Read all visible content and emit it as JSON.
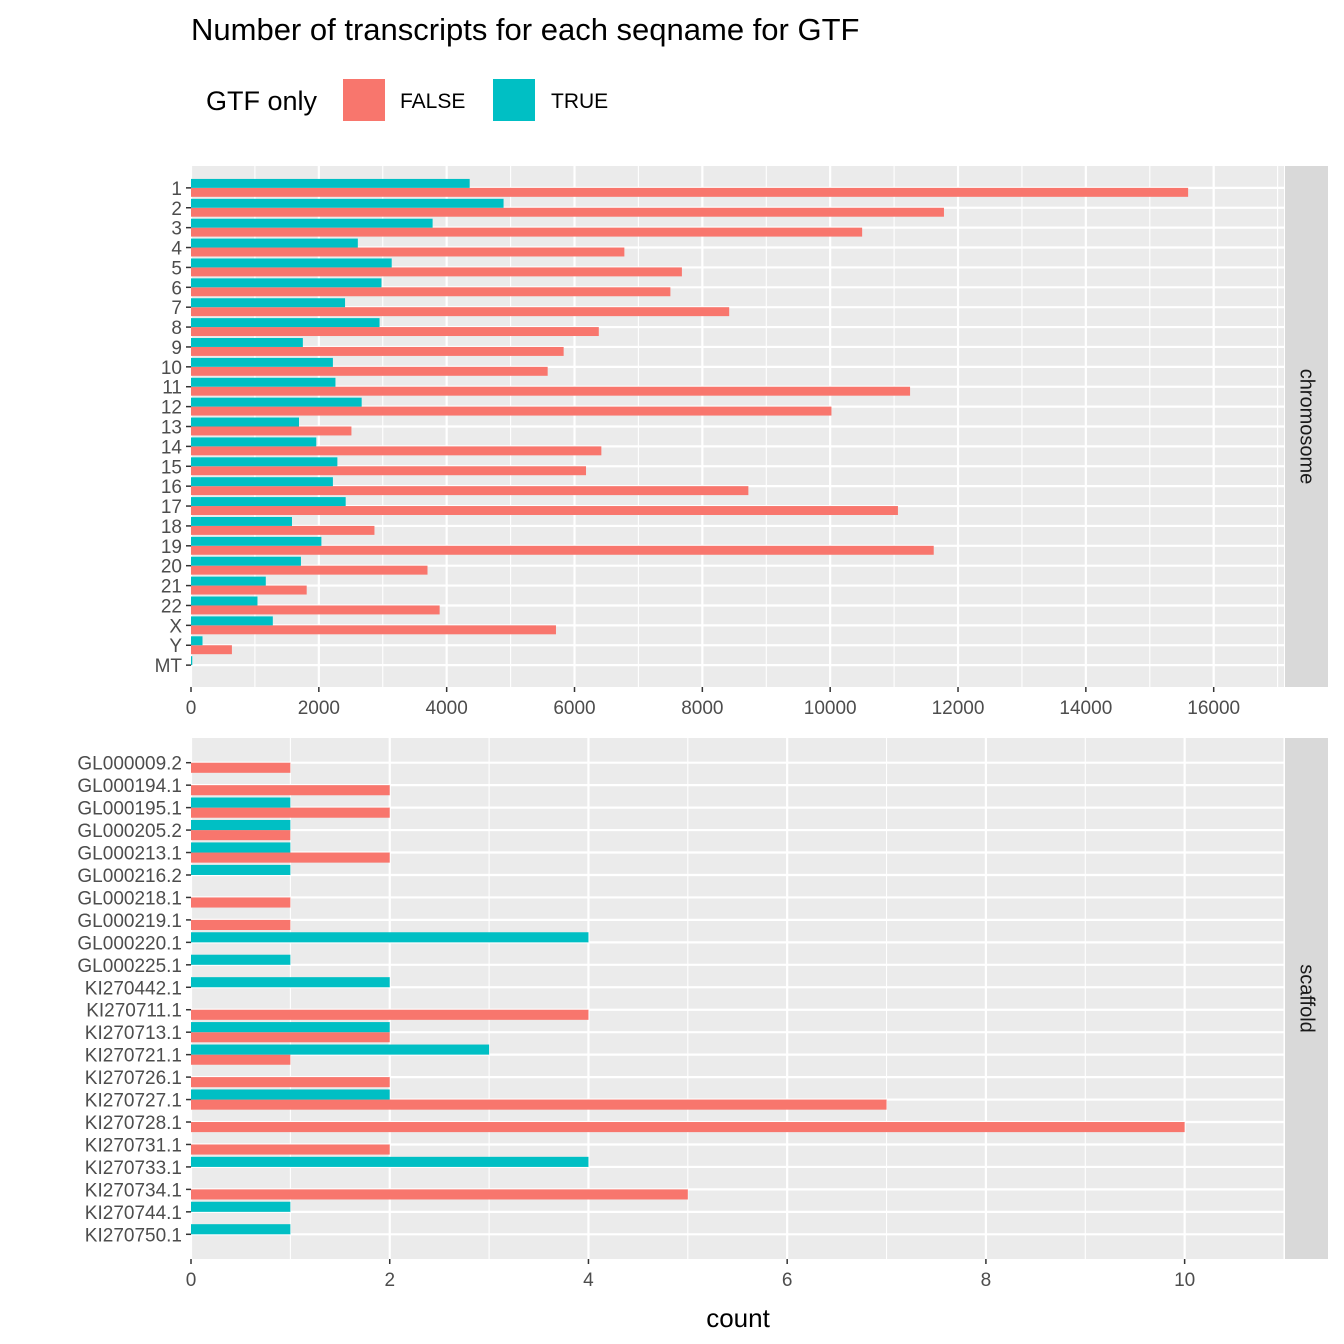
{
  "title": "Number of transcripts for each seqname for GTF",
  "legend": {
    "title": "GTF only",
    "entries": [
      {
        "label": "FALSE",
        "color": "#F8766D"
      },
      {
        "label": "TRUE",
        "color": "#00BFC4"
      }
    ]
  },
  "xlabel": "count",
  "chart_data": [
    {
      "type": "bar",
      "orientation": "horizontal",
      "dodge": true,
      "facet": "chromosome",
      "xlim": [
        0,
        17100
      ],
      "xticks": [
        0,
        2000,
        4000,
        6000,
        8000,
        10000,
        12000,
        14000,
        16000
      ],
      "grid": true,
      "categories": [
        "1",
        "2",
        "3",
        "4",
        "5",
        "6",
        "7",
        "8",
        "9",
        "10",
        "11",
        "12",
        "13",
        "14",
        "15",
        "16",
        "17",
        "18",
        "19",
        "20",
        "21",
        "22",
        "X",
        "Y",
        "MT"
      ],
      "series": [
        {
          "name": "FALSE",
          "values": [
            15600,
            11780,
            10500,
            6780,
            7680,
            7500,
            8420,
            6380,
            5830,
            5580,
            11250,
            10020,
            2510,
            6420,
            6180,
            8720,
            11060,
            2870,
            11620,
            3700,
            1810,
            3890,
            5710,
            640,
            0
          ]
        },
        {
          "name": "TRUE",
          "values": [
            4360,
            4890,
            3780,
            2610,
            3140,
            2980,
            2410,
            2950,
            1750,
            2220,
            2260,
            2670,
            1690,
            1960,
            2290,
            2220,
            2420,
            1580,
            2040,
            1720,
            1170,
            1040,
            1280,
            180,
            20
          ]
        }
      ]
    },
    {
      "type": "bar",
      "orientation": "horizontal",
      "dodge": true,
      "facet": "scaffold",
      "xlim": [
        0,
        11
      ],
      "xticks": [
        0,
        2,
        4,
        6,
        8,
        10
      ],
      "grid": true,
      "categories": [
        "GL000009.2",
        "GL000194.1",
        "GL000195.1",
        "GL000205.2",
        "GL000213.1",
        "GL000216.2",
        "GL000218.1",
        "GL000219.1",
        "GL000220.1",
        "GL000225.1",
        "KI270442.1",
        "KI270711.1",
        "KI270713.1",
        "KI270721.1",
        "KI270726.1",
        "KI270727.1",
        "KI270728.1",
        "KI270731.1",
        "KI270733.1",
        "KI270734.1",
        "KI270744.1",
        "KI270750.1"
      ],
      "series": [
        {
          "name": "FALSE",
          "values": [
            1,
            2,
            2,
            1,
            2,
            0,
            1,
            1,
            0,
            0,
            0,
            4,
            2,
            1,
            2,
            7,
            10,
            2,
            0,
            5,
            0,
            0
          ]
        },
        {
          "name": "TRUE",
          "values": [
            0,
            0,
            1,
            1,
            1,
            1,
            0,
            0,
            4,
            1,
            2,
            0,
            2,
            3,
            0,
            2,
            0,
            0,
            4,
            0,
            1,
            1
          ]
        }
      ]
    }
  ]
}
